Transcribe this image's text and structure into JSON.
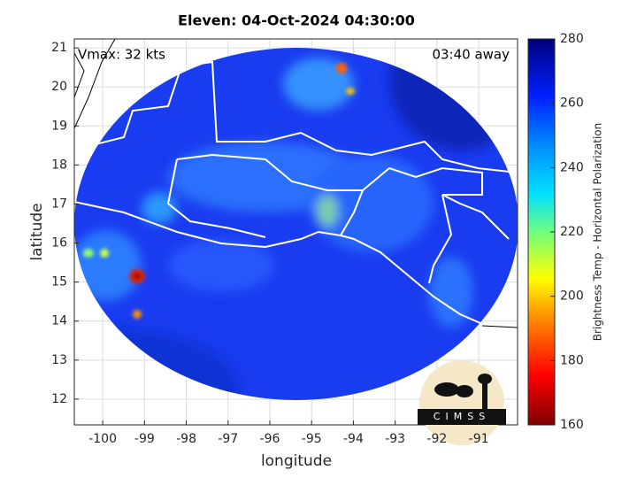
{
  "chart_data": {
    "type": "map",
    "title": "Eleven: 04-Oct-2024 04:30:00",
    "xlabel": "longitude",
    "ylabel": "latitude",
    "xlim": [
      -100.68,
      -90.07
    ],
    "ylim": [
      11.34,
      21.23
    ],
    "xticks": [
      -100,
      -99,
      -98,
      -97,
      -96,
      -95,
      -94,
      -93,
      -92,
      -91
    ],
    "yticks": [
      12,
      13,
      14,
      15,
      16,
      17,
      18,
      19,
      20,
      21
    ],
    "grid": true,
    "annotations": [
      "Vmax: 32 kts",
      "03:40 away"
    ],
    "colorbar": {
      "label": "Brightness Temp - Horizontal Polarization",
      "lim": [
        160,
        280
      ],
      "ticks": [
        160,
        180,
        200,
        220,
        240,
        260,
        280
      ]
    },
    "logo": "CIMSS"
  }
}
